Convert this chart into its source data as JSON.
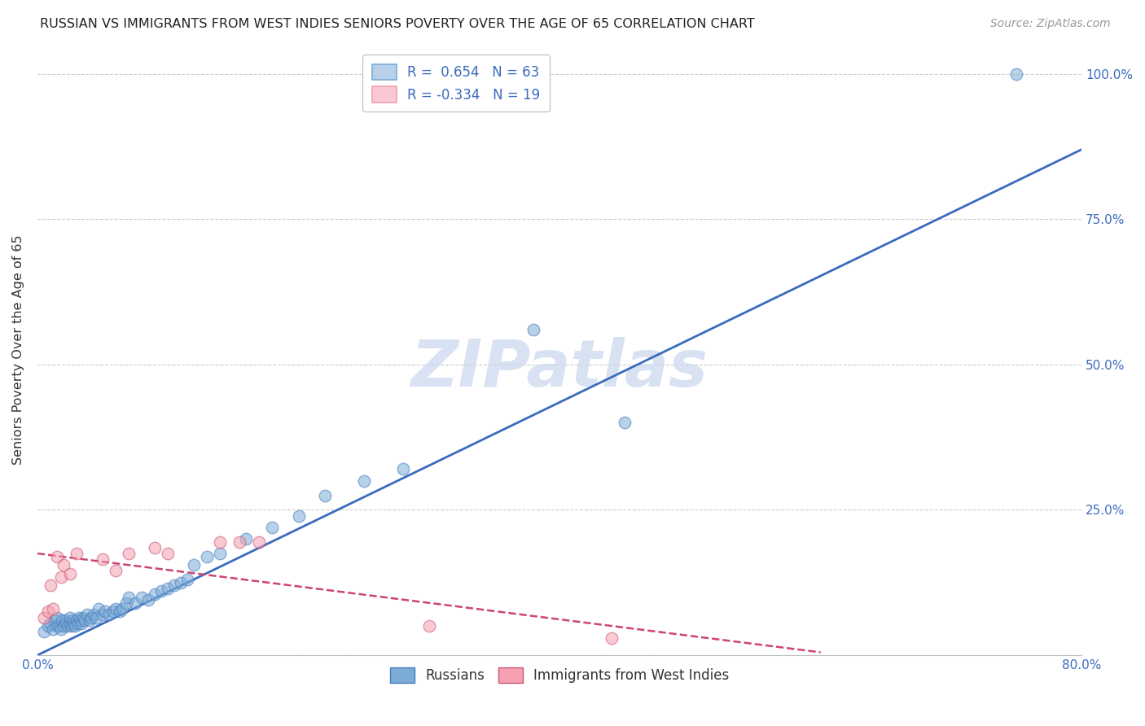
{
  "title": "RUSSIAN VS IMMIGRANTS FROM WEST INDIES SENIORS POVERTY OVER THE AGE OF 65 CORRELATION CHART",
  "source": "Source: ZipAtlas.com",
  "ylabel": "Seniors Poverty Over the Age of 65",
  "xlim": [
    0.0,
    0.8
  ],
  "ylim": [
    0.0,
    1.05
  ],
  "xticks": [
    0.0,
    0.1,
    0.2,
    0.3,
    0.4,
    0.5,
    0.6,
    0.7,
    0.8
  ],
  "xticklabels": [
    "0.0%",
    "",
    "",
    "",
    "",
    "",
    "",
    "",
    "80.0%"
  ],
  "ytick_positions": [
    0.0,
    0.25,
    0.5,
    0.75,
    1.0
  ],
  "yticklabels": [
    "",
    "25.0%",
    "50.0%",
    "75.0%",
    "100.0%"
  ],
  "background_color": "#ffffff",
  "grid_color": "#cccccc",
  "watermark": "ZIPatlas",
  "legend_r1": "R =  0.654   N = 63",
  "legend_r2": "R = -0.334   N = 19",
  "blue_color": "#7aacd6",
  "pink_color": "#f4a0b0",
  "blue_line_color": "#3a6bbf",
  "pink_line_color": "#cc4477",
  "blue_line_x": [
    0.0,
    0.8
  ],
  "blue_line_y": [
    0.0,
    0.87
  ],
  "pink_line_x": [
    0.0,
    0.6
  ],
  "pink_line_y": [
    0.175,
    0.005
  ],
  "russians_x": [
    0.005,
    0.008,
    0.01,
    0.012,
    0.013,
    0.015,
    0.015,
    0.017,
    0.018,
    0.019,
    0.02,
    0.021,
    0.022,
    0.023,
    0.025,
    0.025,
    0.026,
    0.027,
    0.028,
    0.029,
    0.03,
    0.031,
    0.032,
    0.033,
    0.034,
    0.035,
    0.036,
    0.038,
    0.04,
    0.041,
    0.043,
    0.045,
    0.047,
    0.05,
    0.052,
    0.055,
    0.058,
    0.06,
    0.063,
    0.065,
    0.068,
    0.07,
    0.075,
    0.08,
    0.085,
    0.09,
    0.095,
    0.1,
    0.105,
    0.11,
    0.115,
    0.12,
    0.13,
    0.14,
    0.16,
    0.18,
    0.2,
    0.22,
    0.25,
    0.28,
    0.38,
    0.45,
    0.75
  ],
  "russians_y": [
    0.04,
    0.05,
    0.055,
    0.045,
    0.06,
    0.05,
    0.065,
    0.05,
    0.045,
    0.06,
    0.05,
    0.06,
    0.055,
    0.05,
    0.055,
    0.065,
    0.05,
    0.06,
    0.055,
    0.05,
    0.06,
    0.055,
    0.065,
    0.06,
    0.055,
    0.065,
    0.06,
    0.07,
    0.06,
    0.065,
    0.07,
    0.065,
    0.08,
    0.07,
    0.075,
    0.07,
    0.075,
    0.08,
    0.075,
    0.08,
    0.09,
    0.1,
    0.09,
    0.1,
    0.095,
    0.105,
    0.11,
    0.115,
    0.12,
    0.125,
    0.13,
    0.155,
    0.17,
    0.175,
    0.2,
    0.22,
    0.24,
    0.275,
    0.3,
    0.32,
    0.56,
    0.4,
    1.0
  ],
  "west_indies_x": [
    0.005,
    0.008,
    0.01,
    0.012,
    0.015,
    0.018,
    0.02,
    0.025,
    0.03,
    0.05,
    0.06,
    0.07,
    0.09,
    0.1,
    0.14,
    0.155,
    0.17,
    0.3,
    0.44
  ],
  "west_indies_y": [
    0.065,
    0.075,
    0.12,
    0.08,
    0.17,
    0.135,
    0.155,
    0.14,
    0.175,
    0.165,
    0.145,
    0.175,
    0.185,
    0.175,
    0.195,
    0.195,
    0.195,
    0.05,
    0.03
  ]
}
